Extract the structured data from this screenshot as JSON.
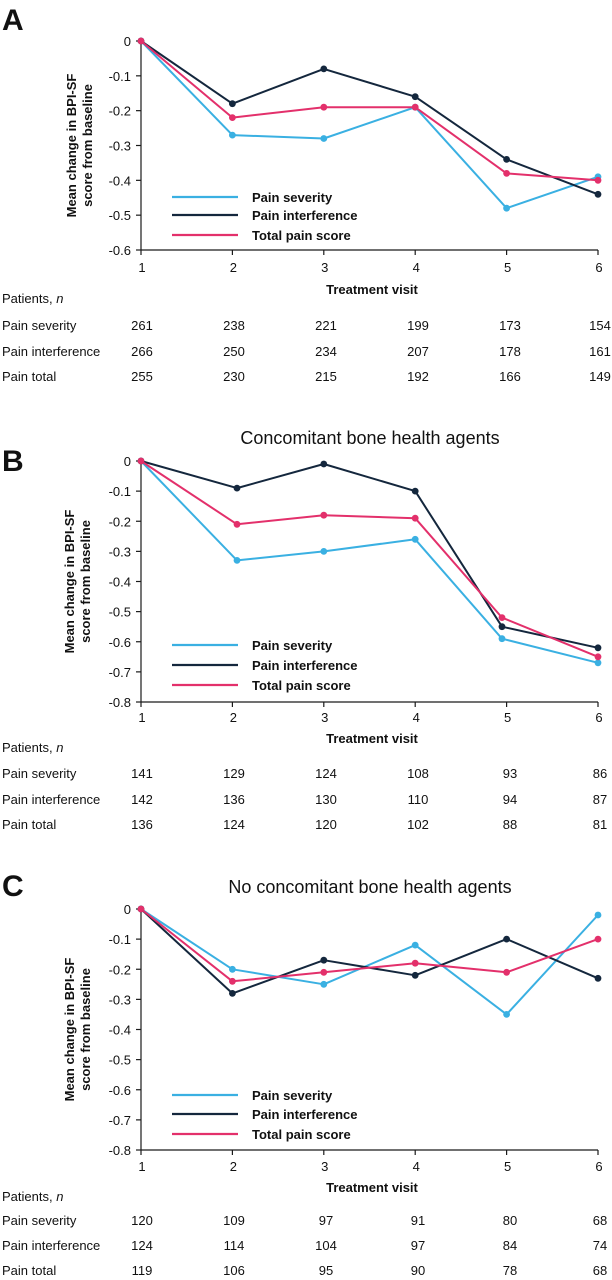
{
  "colors": {
    "severity": "#3ab0e2",
    "interference": "#14273d",
    "total": "#e3306b",
    "axis": "#1a1a1a"
  },
  "table_header": {
    "prefix": "Patients, ",
    "var": "n"
  },
  "table_row_labels": [
    "Pain severity",
    "Pain interference",
    "Pain total"
  ],
  "chart_data": [
    {
      "type": "line",
      "panel_letter": "A",
      "title": "",
      "xlabel": "Treatment visit",
      "ylabel": "Mean change in BPI-SF score from baseline",
      "x": [
        1,
        2,
        3,
        4,
        5,
        6
      ],
      "xticks": [
        "1",
        "2",
        "3",
        "4",
        "5",
        "6"
      ],
      "ylim": [
        -0.6,
        0
      ],
      "yticks": [
        "0",
        "-0.1",
        "-0.2",
        "-0.3",
        "-0.4",
        "-0.5",
        "-0.6"
      ],
      "legend_position": "bottom-left",
      "series": [
        {
          "name": "Pain severity",
          "key": "severity",
          "x": [
            1,
            2,
            3,
            4,
            5,
            6
          ],
          "values": [
            0,
            -0.27,
            -0.28,
            -0.19,
            -0.48,
            -0.39
          ]
        },
        {
          "name": "Pain interference",
          "key": "interference",
          "x": [
            1,
            2,
            3,
            4,
            5,
            6
          ],
          "values": [
            0,
            -0.18,
            -0.08,
            -0.16,
            -0.34,
            -0.44
          ]
        },
        {
          "name": "Total pain score",
          "key": "total",
          "x": [
            1,
            2,
            3,
            4,
            5,
            6
          ],
          "values": [
            0,
            -0.22,
            -0.19,
            -0.19,
            -0.38,
            -0.4
          ]
        }
      ],
      "table": [
        [
          "261",
          "238",
          "221",
          "199",
          "173",
          "154"
        ],
        [
          "266",
          "250",
          "234",
          "207",
          "178",
          "161"
        ],
        [
          "255",
          "230",
          "215",
          "192",
          "166",
          "149"
        ]
      ]
    },
    {
      "type": "line",
      "panel_letter": "B",
      "title": "Concomitant bone health agents",
      "xlabel": "Treatment visit",
      "ylabel": "Mean change in BPI-SF score from baseline",
      "x": [
        1,
        2,
        3,
        4,
        5,
        6
      ],
      "xticks": [
        "1",
        "2",
        "3",
        "4",
        "5",
        "6"
      ],
      "ylim": [
        -0.8,
        0
      ],
      "yticks": [
        "0",
        "-0.1",
        "-0.2",
        "-0.3",
        "-0.4",
        "-0.5",
        "-0.6",
        "-0.7",
        "-0.8"
      ],
      "legend_position": "bottom-left",
      "series": [
        {
          "name": "Pain severity",
          "key": "severity",
          "x": [
            1,
            2.05,
            3,
            4,
            4.95,
            6
          ],
          "values": [
            0,
            -0.33,
            -0.3,
            -0.26,
            -0.59,
            -0.67
          ]
        },
        {
          "name": "Pain interference",
          "key": "interference",
          "x": [
            1,
            2.05,
            3,
            4,
            4.95,
            6
          ],
          "values": [
            0,
            -0.09,
            -0.01,
            -0.1,
            -0.55,
            -0.62
          ]
        },
        {
          "name": "Total pain score",
          "key": "total",
          "x": [
            1,
            2.05,
            3,
            4,
            4.95,
            6
          ],
          "values": [
            0,
            -0.21,
            -0.18,
            -0.19,
            -0.52,
            -0.65
          ]
        }
      ],
      "table": [
        [
          "141",
          "129",
          "124",
          "108",
          "93",
          "86"
        ],
        [
          "142",
          "136",
          "130",
          "110",
          "94",
          "87"
        ],
        [
          "136",
          "124",
          "120",
          "102",
          "88",
          "81"
        ]
      ]
    },
    {
      "type": "line",
      "panel_letter": "C",
      "title": "No concomitant bone health agents",
      "xlabel": "Treatment visit",
      "ylabel": "Mean change in BPI-SF score from baseline",
      "x": [
        1,
        2,
        3,
        4,
        5,
        6
      ],
      "xticks": [
        "1",
        "2",
        "3",
        "4",
        "5",
        "6"
      ],
      "ylim": [
        -0.8,
        0
      ],
      "yticks": [
        "0",
        "-0.1",
        "-0.2",
        "-0.3",
        "-0.4",
        "-0.5",
        "-0.6",
        "-0.7",
        "-0.8"
      ],
      "legend_position": "bottom-left",
      "series": [
        {
          "name": "Pain severity",
          "key": "severity",
          "x": [
            1,
            2,
            3,
            4,
            5,
            6
          ],
          "values": [
            0,
            -0.2,
            -0.25,
            -0.12,
            -0.35,
            -0.02
          ]
        },
        {
          "name": "Pain interference",
          "key": "interference",
          "x": [
            1,
            2,
            3,
            4,
            5,
            6
          ],
          "values": [
            0,
            -0.28,
            -0.17,
            -0.22,
            -0.1,
            -0.23
          ]
        },
        {
          "name": "Total pain score",
          "key": "total",
          "x": [
            1,
            2,
            3,
            4,
            5,
            6
          ],
          "values": [
            0,
            -0.24,
            -0.21,
            -0.18,
            -0.21,
            -0.1
          ]
        }
      ],
      "table": [
        [
          "120",
          "109",
          "97",
          "91",
          "80",
          "68"
        ],
        [
          "124",
          "114",
          "104",
          "97",
          "84",
          "74"
        ],
        [
          "119",
          "106",
          "95",
          "90",
          "78",
          "68"
        ]
      ]
    }
  ]
}
